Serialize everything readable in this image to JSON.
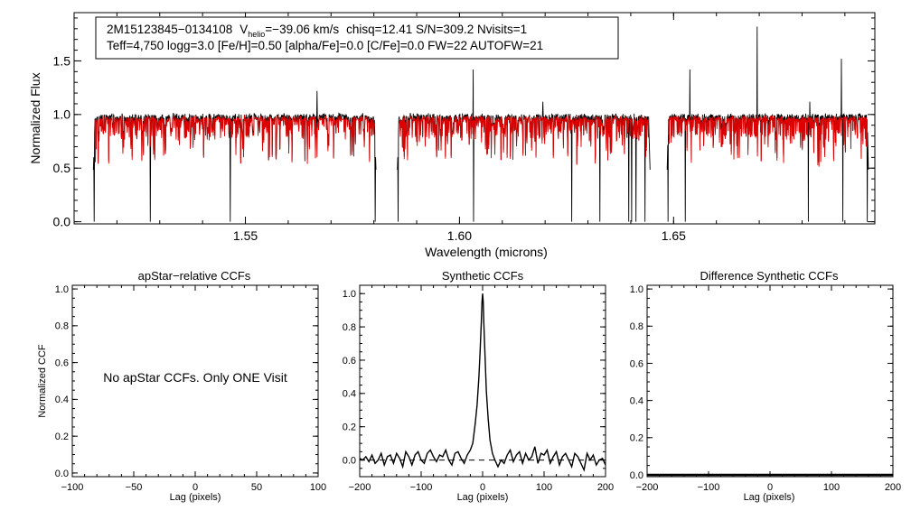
{
  "chart_data": [
    {
      "type": "line",
      "id": "spectrum",
      "ylabel": "Normalized Flux",
      "xlabel": "Wavelength (microns)",
      "xlim": [
        1.51,
        1.697
      ],
      "ylim": [
        -0.02,
        1.95
      ],
      "xticks": [
        1.55,
        1.6,
        1.65
      ],
      "xtick_labels": [
        "1.55",
        "1.60",
        "1.65"
      ],
      "yticks": [
        0.0,
        0.5,
        1.0,
        1.5
      ],
      "ytick_labels": [
        "0.0",
        "0.5",
        "1.0",
        "1.5"
      ],
      "info_line1": {
        "star": "2M15123845−0134108",
        "v_label": "V",
        "v_sub": "helio",
        "v_value": "=−39.06 km/s",
        "rest": "chisq=12.41  S/N=309.2  Nvisits=1"
      },
      "info_line2": "Teff=4,750 logg=3.0 [Fe/H]=0.50 [alpha/Fe]=0.0 [C/Fe]=0.0 FW=22 AUTOFW=21",
      "chips": [
        [
          1.5145,
          1.5805
        ],
        [
          1.5855,
          1.6445
        ],
        [
          1.6485,
          1.6955
        ]
      ],
      "continuum": 0.97,
      "series": [
        {
          "color": "#000000"
        },
        {
          "color": "#dd0000"
        }
      ],
      "emission_spikes": [
        [
          1.5667,
          1.22
        ],
        [
          1.6032,
          1.42
        ],
        [
          1.6195,
          1.12
        ],
        [
          1.6538,
          1.42
        ],
        [
          1.6695,
          1.82
        ],
        [
          1.6818,
          1.12
        ],
        [
          1.6892,
          1.52
        ]
      ],
      "telluric_drops": [
        1.5147,
        1.5278,
        1.5465,
        1.5803,
        1.5857,
        1.6033,
        1.6262,
        1.6328,
        1.6395,
        1.6402,
        1.6412,
        1.6433,
        1.6487,
        1.6527,
        1.6815,
        1.6895,
        1.6952
      ]
    },
    {
      "type": "line",
      "id": "apstar",
      "title": "apStar−relative CCFs",
      "ylabel": "Normalized CCF",
      "xlabel": "Lag (pixels)",
      "xlim": [
        -100,
        100
      ],
      "ylim": [
        -0.02,
        1.02
      ],
      "xticks": [
        -100,
        -50,
        0,
        50,
        100
      ],
      "xtick_labels": [
        "−100",
        "−50",
        "0",
        "50",
        "100"
      ],
      "yticks": [
        0.0,
        0.2,
        0.4,
        0.6,
        0.8,
        1.0
      ],
      "ytick_labels": [
        "0.0",
        "0.2",
        "0.4",
        "0.6",
        "0.8",
        "1.0"
      ],
      "message": "No apStar CCFs.  Only ONE Visit"
    },
    {
      "type": "line",
      "id": "synthetic",
      "title": "Synthetic CCFs",
      "xlabel": "Lag (pixels)",
      "xlim": [
        -200,
        200
      ],
      "ylim": [
        -0.1,
        1.05
      ],
      "xticks": [
        -200,
        -100,
        0,
        100,
        200
      ],
      "xtick_labels": [
        "−200",
        "−100",
        "0",
        "100",
        "200"
      ],
      "yticks": [
        0.0,
        0.2,
        0.4,
        0.6,
        0.8,
        1.0
      ],
      "ytick_labels": [
        "0.0",
        "0.2",
        "0.4",
        "0.6",
        "0.8",
        "1.0"
      ],
      "baseline": 0.0,
      "peak": {
        "x": 0,
        "y": 1.0
      },
      "series": [
        {
          "color": "#000000",
          "x": [
            -200,
            -195,
            -190,
            -185,
            -180,
            -175,
            -170,
            -165,
            -160,
            -155,
            -150,
            -145,
            -140,
            -135,
            -130,
            -125,
            -120,
            -115,
            -110,
            -105,
            -100,
            -95,
            -90,
            -85,
            -80,
            -75,
            -70,
            -65,
            -60,
            -55,
            -50,
            -45,
            -40,
            -35,
            -30,
            -25,
            -20,
            -16,
            -12,
            -9,
            -6,
            -4,
            -2,
            -1,
            0,
            1,
            2,
            4,
            6,
            9,
            12,
            16,
            20,
            25,
            30,
            35,
            40,
            45,
            50,
            55,
            60,
            65,
            70,
            75,
            80,
            85,
            90,
            95,
            100,
            105,
            110,
            115,
            120,
            125,
            130,
            135,
            140,
            145,
            150,
            155,
            160,
            165,
            170,
            175,
            180,
            185,
            190,
            195,
            200
          ],
          "y": [
            0.01,
            0.0,
            0.02,
            -0.01,
            0.03,
            -0.02,
            0.0,
            0.04,
            -0.03,
            0.02,
            0.03,
            -0.02,
            0.04,
            0.01,
            -0.04,
            0.05,
            0.02,
            -0.03,
            0.03,
            0.05,
            0.0,
            -0.02,
            0.04,
            0.06,
            0.02,
            -0.01,
            0.03,
            0.02,
            0.06,
            0.0,
            -0.03,
            0.04,
            0.05,
            0.01,
            -0.02,
            0.03,
            0.06,
            0.1,
            0.22,
            0.33,
            0.5,
            0.66,
            0.84,
            0.95,
            1.0,
            0.95,
            0.82,
            0.62,
            0.42,
            0.25,
            0.12,
            0.04,
            0.0,
            -0.04,
            0.0,
            -0.02,
            0.03,
            0.06,
            -0.01,
            0.03,
            0.05,
            -0.02,
            0.04,
            0.0,
            0.02,
            0.08,
            -0.02,
            0.04,
            0.03,
            0.06,
            -0.02,
            0.02,
            0.05,
            -0.03,
            0.02,
            0.04,
            0.0,
            -0.04,
            0.04,
            0.02,
            -0.02,
            -0.06,
            0.04,
            0.0,
            0.03,
            -0.03,
            0.0,
            0.01,
            -0.03
          ]
        }
      ]
    },
    {
      "type": "line",
      "id": "difference",
      "title": "Difference Synthetic CCFs",
      "xlabel": "Lag (pixels)",
      "xlim": [
        -200,
        200
      ],
      "ylim": [
        -0.01,
        1.02
      ],
      "xticks": [
        -200,
        -100,
        0,
        100,
        200
      ],
      "xtick_labels": [
        "−200",
        "−100",
        "0",
        "100",
        "200"
      ],
      "yticks": [
        0.0,
        0.2,
        0.4,
        0.6,
        0.8,
        1.0
      ],
      "ytick_labels": [
        "0.0",
        "0.2",
        "0.4",
        "0.6",
        "0.8",
        "1.0"
      ],
      "series": [
        {
          "color": "#000000",
          "x": [
            -200,
            200
          ],
          "y": [
            0.0,
            0.0
          ]
        }
      ]
    }
  ]
}
